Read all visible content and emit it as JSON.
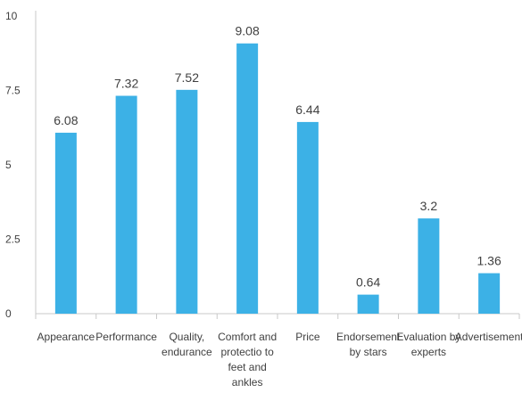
{
  "chart_data": {
    "type": "bar",
    "categories": [
      [
        "Appearance"
      ],
      [
        "Performance"
      ],
      [
        "Quality,",
        "endurance"
      ],
      [
        "Comfort and",
        "protectio to",
        "feet and",
        "ankles"
      ],
      [
        "Price"
      ],
      [
        "Endorsement",
        "by stars"
      ],
      [
        "Evaluation by",
        "experts"
      ],
      [
        "Advertisement"
      ]
    ],
    "values": [
      6.08,
      7.32,
      7.52,
      9.08,
      6.44,
      0.64,
      3.2,
      1.36
    ],
    "value_labels": [
      "6.08",
      "7.32",
      "7.52",
      "9.08",
      "6.44",
      "0.64",
      "3.2",
      "1.36"
    ],
    "y_ticks": [
      0,
      2.5,
      5,
      7.5,
      10
    ],
    "y_tick_labels": [
      "0",
      "2.5",
      "5",
      "7.5",
      "10"
    ],
    "ylim": [
      0,
      10
    ],
    "title": "",
    "xlabel": "",
    "ylabel": "",
    "grid": false,
    "colors": {
      "bar": "#3cb1e6",
      "axis": "#c8c8c8",
      "text": "#404040"
    }
  }
}
